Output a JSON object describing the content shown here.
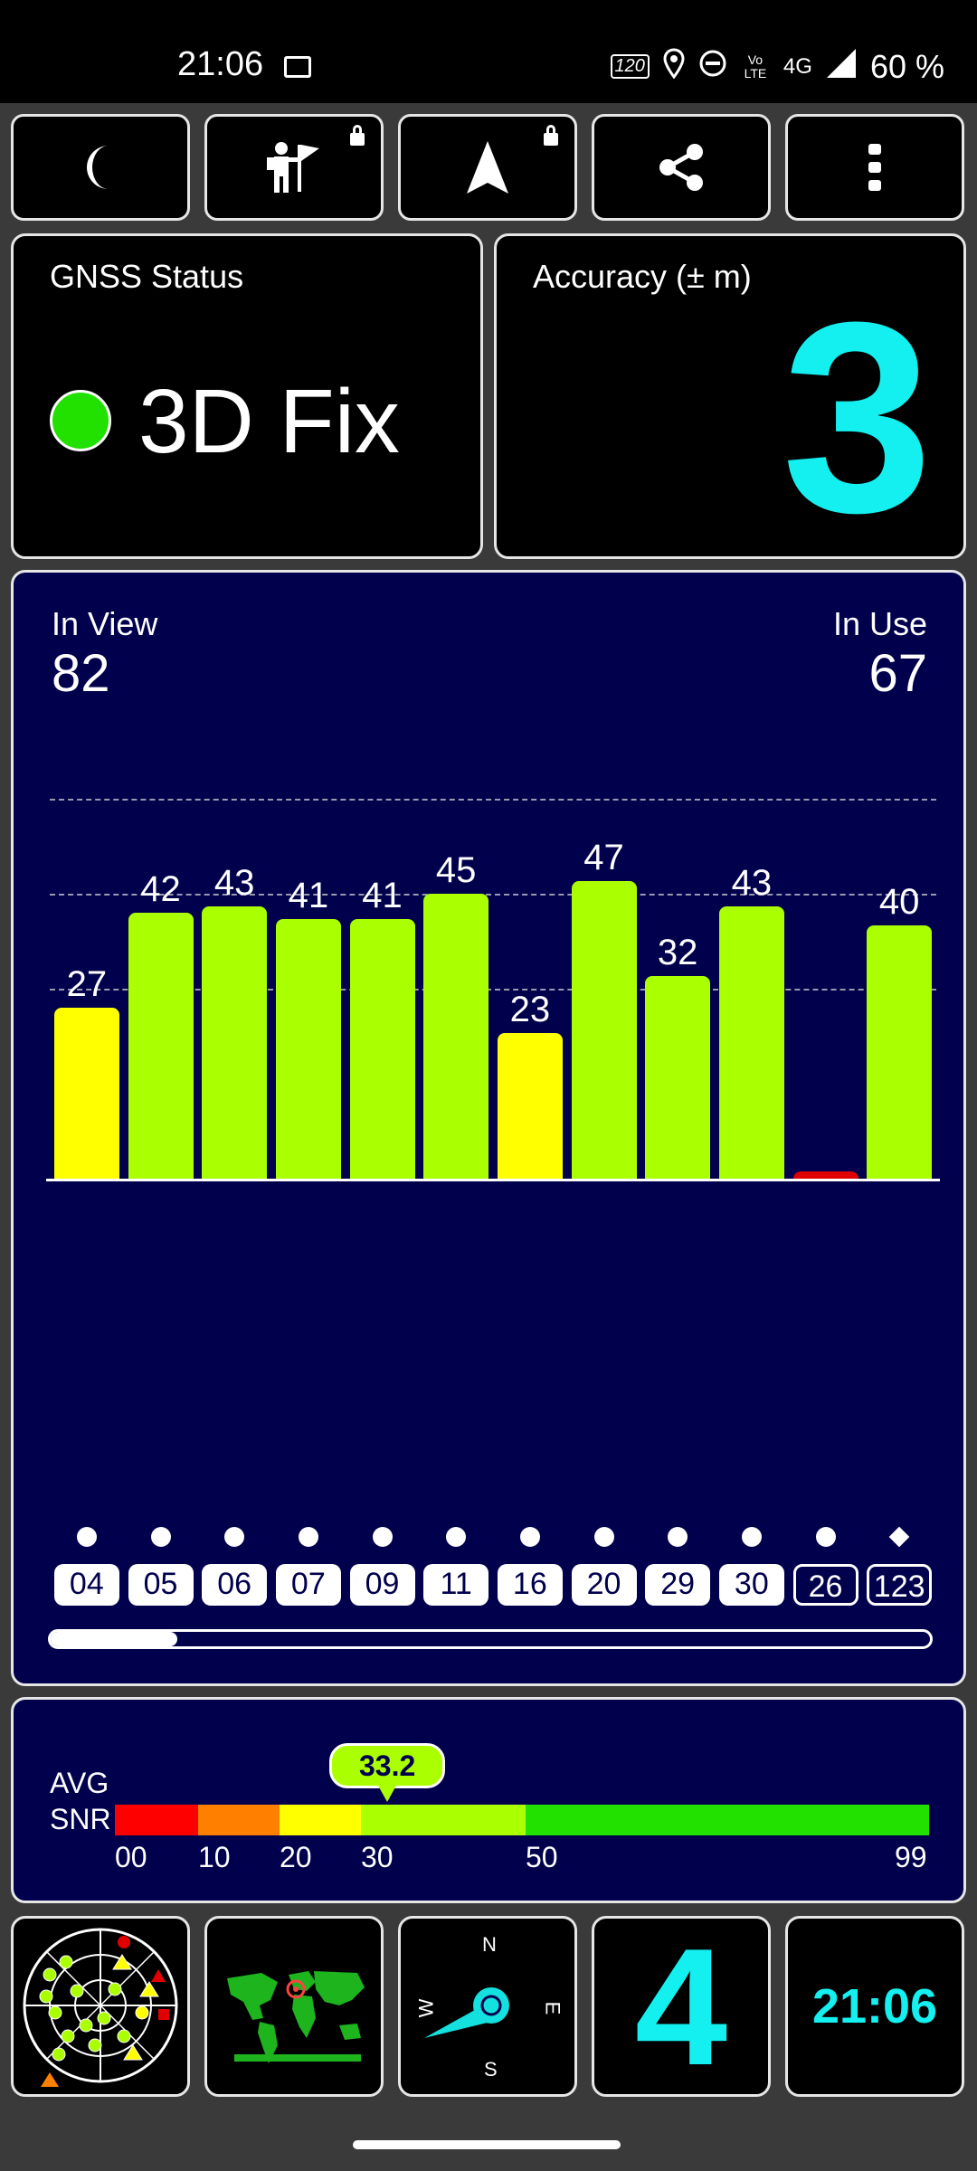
{
  "status_bar": {
    "time": "21:06",
    "refresh_rate": "120",
    "network": "4G",
    "volte": "Vo LTE",
    "battery": "60 %",
    "icons": [
      "image-icon",
      "refresh-rate-icon",
      "location-icon",
      "dnd-icon",
      "volte-icon",
      "network-4g-icon",
      "signal-icon"
    ]
  },
  "toolbar": {
    "buttons": [
      "night-mode-icon",
      "record-track-icon",
      "navigate-icon",
      "share-icon",
      "more-icon"
    ]
  },
  "gnss_status": {
    "title": "GNSS Status",
    "value": "3D Fix",
    "indicator_color": "#22e000"
  },
  "accuracy": {
    "title": "Accuracy (± m)",
    "value": "3",
    "value_color": "#14f0f0"
  },
  "signal_panel": {
    "in_view_label": "In View",
    "in_view_value": "82",
    "in_use_label": "In Use",
    "in_use_value": "67"
  },
  "chart_data": {
    "type": "bar",
    "categories": [
      "04",
      "05",
      "06",
      "07",
      "09",
      "11",
      "16",
      "20",
      "29",
      "30",
      "26",
      "123"
    ],
    "values": [
      27,
      42,
      43,
      41,
      41,
      45,
      23,
      47,
      32,
      43,
      0,
      40
    ],
    "labels": [
      "27",
      "42",
      "43",
      "41",
      "41",
      "45",
      "23",
      "47",
      "32",
      "43",
      "",
      "40"
    ],
    "in_use": [
      true,
      true,
      true,
      true,
      true,
      true,
      true,
      true,
      true,
      true,
      false,
      false
    ],
    "constellation_marker": [
      "dot",
      "dot",
      "dot",
      "dot",
      "dot",
      "dot",
      "dot",
      "dot",
      "dot",
      "dot",
      "dot",
      "diamond"
    ],
    "ylim": [
      0,
      70
    ],
    "gridlines": [
      30,
      45,
      60
    ],
    "colors": {
      "weak": "#ffff00",
      "good": "#aaff00",
      "none": "#e00000"
    }
  },
  "snr": {
    "avg_label": "AVG",
    "snr_label": "SNR",
    "value": "33.2",
    "value_num": 33.2,
    "ticks": [
      "00",
      "10",
      "20",
      "30",
      "50",
      "99"
    ],
    "colors": [
      "#ff0000",
      "#ff7f00",
      "#ffff00",
      "#aaff00",
      "#22e000"
    ]
  },
  "bottom_tiles": {
    "satellite_count": "4",
    "clock": "21:06",
    "compass": {
      "n": "N",
      "e": "E",
      "s": "S",
      "w": "W"
    },
    "icons": [
      "sky-plot-icon",
      "world-map-icon",
      "compass-icon"
    ]
  }
}
